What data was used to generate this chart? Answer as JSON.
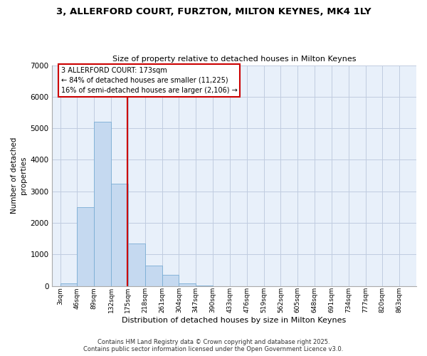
{
  "title_line1": "3, ALLERFORD COURT, FURZTON, MILTON KEYNES, MK4 1LY",
  "title_line2": "Size of property relative to detached houses in Milton Keynes",
  "xlabel": "Distribution of detached houses by size in Milton Keynes",
  "ylabel": "Number of detached\nproperties",
  "footer": "Contains HM Land Registry data © Crown copyright and database right 2025.\nContains public sector information licensed under the Open Government Licence v3.0.",
  "bins": [
    3,
    46,
    89,
    132,
    175,
    218,
    261,
    304,
    347,
    390,
    433,
    476,
    519,
    562,
    605,
    648,
    691,
    734,
    777,
    820,
    863
  ],
  "bar_heights": [
    80,
    2500,
    5200,
    3250,
    1350,
    650,
    350,
    80,
    10,
    0,
    0,
    0,
    0,
    0,
    0,
    0,
    0,
    0,
    0,
    0
  ],
  "bar_color": "#c5d9f0",
  "bar_edge_color": "#7aadd4",
  "property_size": 173,
  "vline_color": "#cc0000",
  "annotation_text": "3 ALLERFORD COURT: 173sqm\n← 84% of detached houses are smaller (11,225)\n16% of semi-detached houses are larger (2,106) →",
  "ylim_max": 7000,
  "yticks": [
    0,
    1000,
    2000,
    3000,
    4000,
    5000,
    6000,
    7000
  ],
  "bg_color": "#e8f0fa",
  "grid_color": "#c0cce0"
}
